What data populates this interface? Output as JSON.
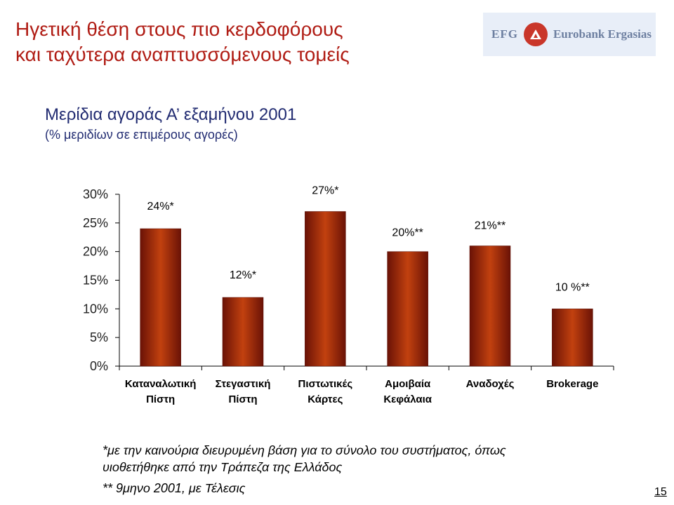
{
  "slide": {
    "title_line1": "Ηγετική θέση στους πιο κερδοφόρους",
    "title_line2": "και ταχύτερα αναπτυσσόμενους τομείς",
    "subtitle": "Μερίδια αγοράς Α’ εξαμήνου 2001",
    "subtitle2": "(% μεριδίων σε επιμέρους αγορές)",
    "footnote1": "*με την καινούρια διευρυμένη βάση για το σύνολο του συστήματος, όπως υιοθετήθηκε από την Τράπεζα της Ελλάδος",
    "footnote2": "** 9μηνο 2001, με Τέλεσις",
    "page_number": "15"
  },
  "logo": {
    "text_left": "EFG",
    "text_right": "Eurobank Ergasias",
    "background_color": "#e8eef8",
    "mark_color": "#c9362a"
  },
  "chart_data": {
    "type": "bar",
    "categories": [
      [
        "Καταναλωτική",
        "Πίστη"
      ],
      [
        "Στεγαστική",
        "Πίστη"
      ],
      [
        "Πιστωτικές",
        "Κάρτες"
      ],
      [
        "Αμοιβαία",
        "Κεφάλαια"
      ],
      [
        "Αναδοχές"
      ],
      [
        "Brokerage"
      ]
    ],
    "values": [
      24,
      12,
      27,
      20,
      21,
      10
    ],
    "data_labels": [
      "24%*",
      "12%*",
      "27%*",
      "20%**",
      "21%**",
      "10 %**"
    ],
    "y_ticks": [
      "0%",
      "5%",
      "10%",
      "15%",
      "20%",
      "25%",
      "30%"
    ],
    "ylim": [
      0,
      30
    ],
    "grid": false,
    "legend": "none",
    "bar_color": "#8b1a0a",
    "bar_highlight_color": "#c2410f"
  }
}
